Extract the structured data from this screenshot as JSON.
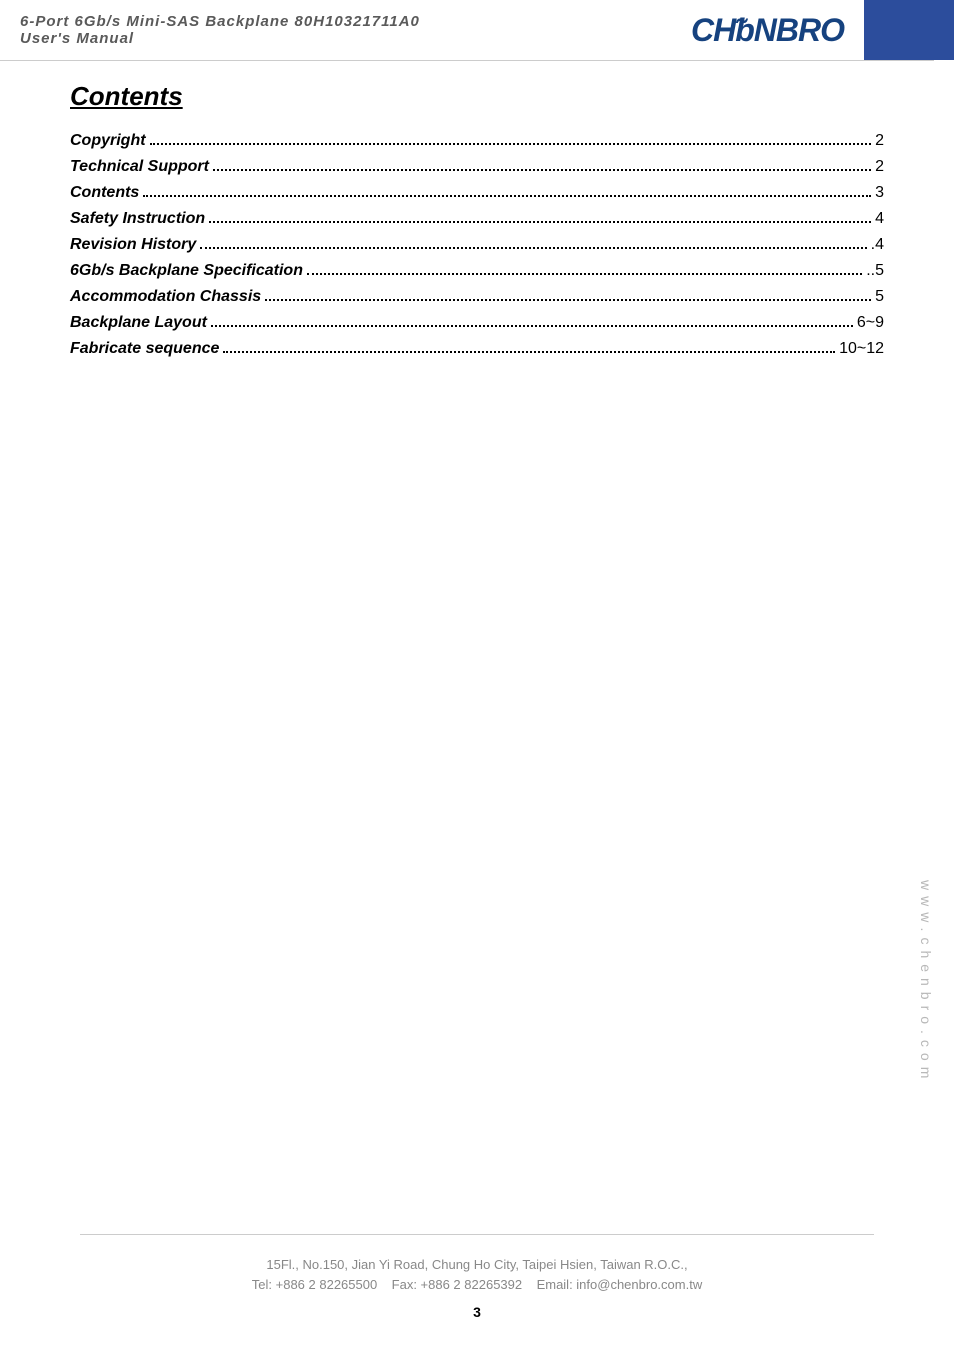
{
  "header": {
    "line1": "6-Port 6Gb/s Mini-SAS Backplane 80H10321711A0",
    "line2": "User's Manual",
    "logo_text": "CHENBRO"
  },
  "contents": {
    "title": "Contents",
    "entries": [
      {
        "label": "Copyright",
        "page": "2"
      },
      {
        "label": "Technical Support",
        "page": "2"
      },
      {
        "label": "Contents",
        "page": "3"
      },
      {
        "label": "Safety Instruction",
        "page": "4"
      },
      {
        "label": "Revision History",
        "page": ".4"
      },
      {
        "label": "6Gb/s Backplane Specification",
        "page": "..5"
      },
      {
        "label": "Accommodation Chassis",
        "page": "5"
      },
      {
        "label": "Backplane Layout",
        "page": "6~9"
      },
      {
        "label": "Fabricate sequence",
        "page": "10~12"
      }
    ]
  },
  "vertical_url": "www.chenbro.com",
  "footer": {
    "address": "15Fl., No.150, Jian Yi Road, Chung Ho City, Taipei Hsien, Taiwan R.O.C.,",
    "contact": "Tel: +886 2 82265500    Fax: +886 2 82265392    Email: info@chenbro.com.tw",
    "page_number": "3"
  },
  "colors": {
    "brand_blue": "#16427f",
    "block_blue": "#2c4d9c",
    "header_gray": "#5a5a5a",
    "footer_gray": "#888888",
    "url_gray": "#b8b8b8",
    "divider": "#cccccc"
  }
}
